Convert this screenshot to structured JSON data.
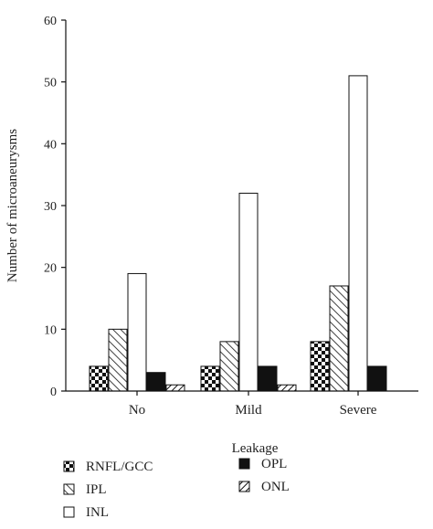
{
  "chart_data": {
    "type": "bar",
    "xlabel": "Leakage",
    "ylabel": "Number of microaneurysms",
    "ylim": [
      0,
      60
    ],
    "yticks": [
      0,
      10,
      20,
      30,
      40,
      50,
      60
    ],
    "categories": [
      "No",
      "Mild",
      "Severe"
    ],
    "series": [
      {
        "name": "RNFL/GCC",
        "pattern": "checker",
        "values": [
          4,
          4,
          8
        ]
      },
      {
        "name": "IPL",
        "pattern": "hatch",
        "values": [
          10,
          8,
          17
        ]
      },
      {
        "name": "INL",
        "pattern": "white",
        "values": [
          19,
          32,
          51
        ]
      },
      {
        "name": "OPL",
        "pattern": "black",
        "values": [
          3,
          4,
          4
        ]
      },
      {
        "name": "ONL",
        "pattern": "backhatch",
        "values": [
          1,
          1,
          0
        ]
      }
    ],
    "legend_position": "bottom",
    "grid": false
  }
}
